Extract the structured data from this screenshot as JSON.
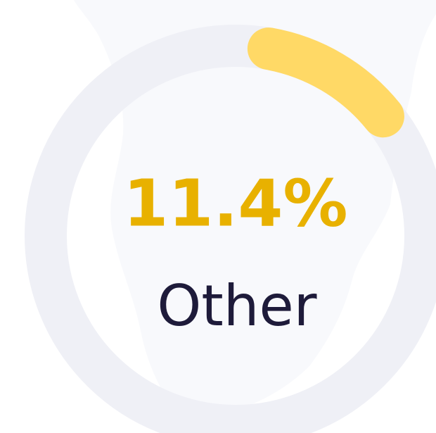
{
  "chart_data": {
    "type": "donut",
    "categories": [
      "Other"
    ],
    "values": [
      11.4
    ],
    "value_labels": [
      "11.4%"
    ],
    "color": "#ffd966",
    "track_color": "#eff0f6",
    "label_color": "#e8b100",
    "category_color": "#1e1b3a"
  }
}
